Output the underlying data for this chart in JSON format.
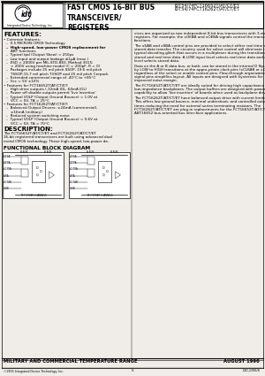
{
  "bg_color": "#f0ede8",
  "title_main": "FAST CMOS 16-BIT BUS\nTRANSCEIVER/\nREGISTERS",
  "title_part1": "IDT54/74FCT16652T/AT/CT/ET",
  "title_part2": "IDT54/74FCT16262T/AT/CT/ET",
  "features_title": "FEATURES:",
  "desc_title": "DESCRIPTION:",
  "block_diag_title": "FUNCTIONAL BLOCK DIAGRAM",
  "footer_mil": "MILITARY AND COMMERCIAL TEMPERATURE RANGE",
  "footer_date": "AUGUST 1996",
  "footer_copy": "©1996 Integrated Device Technology, Inc.",
  "footer_doc": "DSC-2396/8",
  "page_num": "5",
  "feature_lines": [
    [
      "• Common features:",
      false,
      0
    ],
    [
      "–  0.5 MICRON CMOS Technology",
      false,
      3
    ],
    [
      "–  High-speed, low-power CMOS replacement for",
      true,
      3
    ],
    [
      "    ABT functions",
      false,
      3
    ],
    [
      "–  Typical tpd (Output Skew) < 250ps",
      false,
      3
    ],
    [
      "–  Low input and output leakage ≤1μA (max.)",
      false,
      3
    ],
    [
      "–  ESD > 2000V per MIL-STD-883, Method 3015;",
      false,
      3
    ],
    [
      "    > 200V using machine model (C = 200pF, R = 0)",
      false,
      3
    ],
    [
      "–  Packages include 25 mil pitch SSOP, 19.6 mil pitch",
      false,
      3
    ],
    [
      "    TSSOP,15.7 mil pitch TVSOP and 25 mil pitch Cerpack",
      false,
      3
    ],
    [
      "–  Extended commercial range of -40°C to +85°C",
      false,
      3
    ],
    [
      "–  Vcc = 5V ±10%",
      false,
      3
    ],
    [
      "• Features for FCT16652T/AT/CT/ET:",
      false,
      0
    ],
    [
      "–  High drive outputs (-32mA IOL, 64mA IOL)",
      false,
      3
    ],
    [
      "–  Power off disable outputs permit 'live Insertion'",
      false,
      3
    ],
    [
      "–  Typical VOLP (Output Ground Bounce) = 1.0V at",
      false,
      3
    ],
    [
      "    VCC = 5V, TA = 25°C",
      false,
      3
    ],
    [
      "• Features for FCT16262T/AT/CT/ET:",
      false,
      0
    ],
    [
      "–  Balanced Output Drivers: ±24mA (commercial),",
      false,
      3
    ],
    [
      "    ±16mA (military)",
      false,
      3
    ],
    [
      "–  Reduced system switching noise",
      false,
      3
    ],
    [
      "–  Typical VOLP (Output Ground Bounce) = 0.6V at",
      false,
      3
    ],
    [
      "    VCC = 5V, TA = 70°C",
      false,
      3
    ]
  ],
  "desc_lines": [
    "The FCT16652T/AT/CT/ET and FCT16262T/AT/CT/ET",
    "16-bit registered transceivers are built using advanced dual",
    "metal CMOS technology. These high-speed, low-power de-"
  ],
  "right_paragraphs": [
    "vices are organized as two independent 8-bit bus transceivers with 3-state D-type registers. For example, the xOEAB and xOEBA signals control the transceiver functions.",
    "   The xSAB and xSBA control pins are provided to select either real time or stored-data transfer. The circuitry used for select control will eliminate the typical decoding glitch that occurs in a multiplexer during the transition between stored and real time data. A LOW input level selects real-time data and a HIGH level selects stored data.",
    "   Data on the A or B data bus, or both, can be stored in the internal D flip-flops by LOW to HIGH transitions at the appro-priate clock pins (xCLKAB or xCLKBA), regardless of the select or enable control pins. Flow-through organization of signal pins simplifies layout. All inputs are designed with hysteresis for improved noise margin.",
    "   The FCT16652T/AT/CT/ET are ideally suited for driving high capacitance loads and low-impedance backplanes. The output buffers are designed with power off disable capability to allow 'live insertion' of boards when used as backplane drivers.",
    "   The FCT16262T/AT/CT/ET have balanced output drive with current limiting resistors. This offers low ground bounce, minimal undershoot, and controlled output fall times-reducing the need for external series terminating resistors. The FCT16262T/AT/CT/ET are plug-in replacements for the FCT16652T/AT/CT/ET and ABT16652 bus-oriented bus inter-face applications."
  ]
}
